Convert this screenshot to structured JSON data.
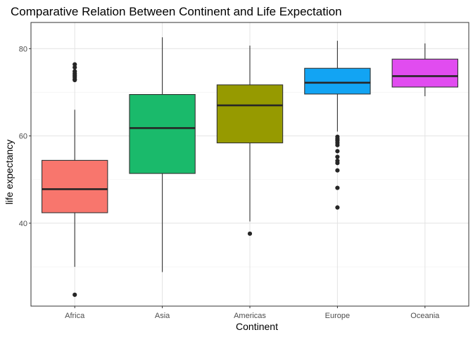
{
  "chart_data": {
    "type": "boxplot",
    "title": "Comparative Relation Between Continent and Life Expectation",
    "xlabel": "Continent",
    "ylabel": "life expectancy",
    "ylim": [
      21,
      86
    ],
    "y_ticks": [
      40,
      60,
      80
    ],
    "y_minor_ticks": [
      30,
      50,
      70
    ],
    "grid": true,
    "legend": "none",
    "categories": [
      "Africa",
      "Asia",
      "Americas",
      "Europe",
      "Oceania"
    ],
    "boxes": [
      {
        "category": "Africa",
        "min": 30.0,
        "q1": 42.4,
        "median": 47.8,
        "q3": 54.4,
        "max": 66.0,
        "outliers": [
          76.4,
          75.7,
          74.8,
          74.3,
          73.9,
          73.5,
          73.0,
          72.8,
          23.6
        ],
        "color": "#F8766D"
      },
      {
        "category": "Asia",
        "min": 28.8,
        "q1": 51.4,
        "median": 61.8,
        "q3": 69.5,
        "max": 82.6,
        "outliers": [],
        "color": "#1ABA6B"
      },
      {
        "category": "Americas",
        "min": 40.4,
        "q1": 58.4,
        "median": 67.0,
        "q3": 71.7,
        "max": 80.7,
        "outliers": [
          37.6
        ],
        "color": "#969A00"
      },
      {
        "category": "Europe",
        "min": 61.0,
        "q1": 69.6,
        "median": 72.2,
        "q3": 75.5,
        "max": 81.8,
        "outliers": [
          59.8,
          59.3,
          58.9,
          58.4,
          57.9,
          56.5,
          55.2,
          54.3,
          53.8,
          52.1,
          48.1,
          43.6
        ],
        "color": "#12A4F3"
      },
      {
        "category": "Oceania",
        "min": 69.1,
        "q1": 71.2,
        "median": 73.7,
        "q3": 77.6,
        "max": 81.2,
        "outliers": [],
        "color": "#E14CF0"
      }
    ]
  }
}
